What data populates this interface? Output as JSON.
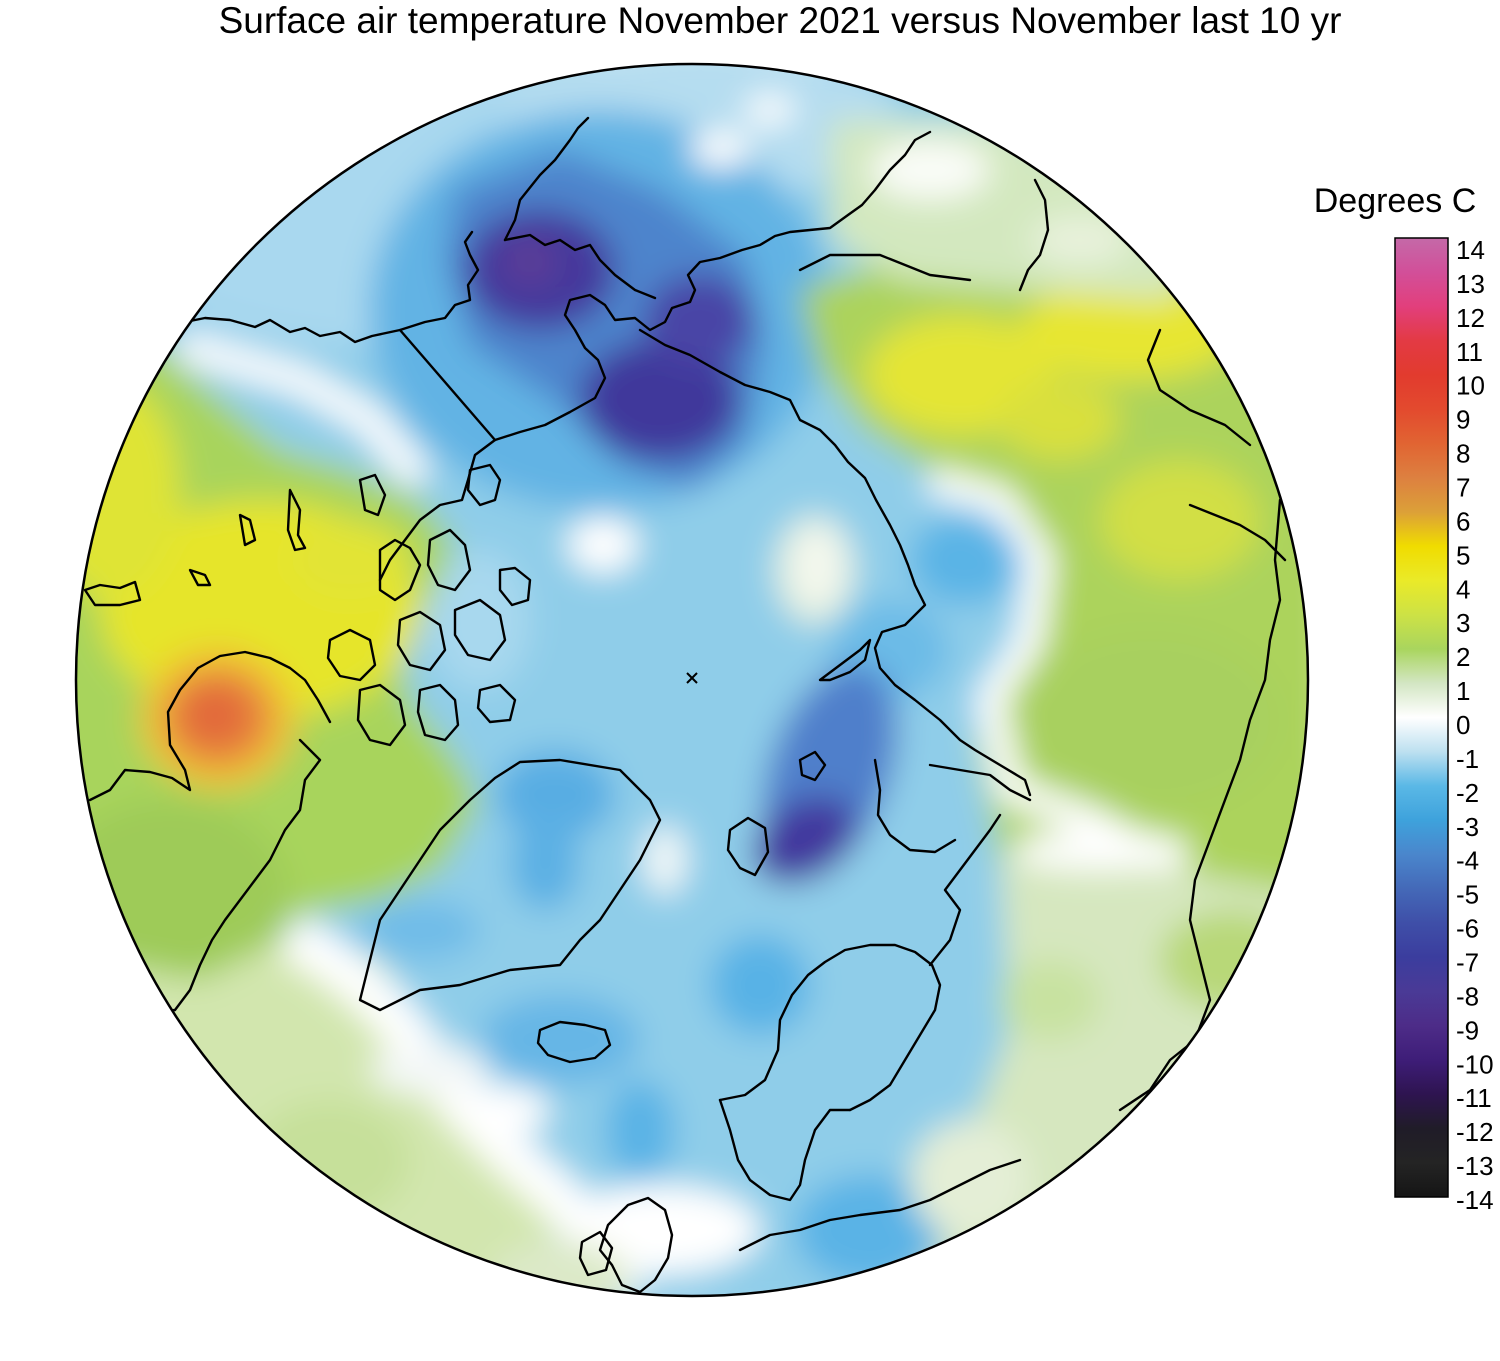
{
  "title": "Surface air temperature November 2021 versus November last 10 yr",
  "colorbar": {
    "label": "Degrees C",
    "ticks": [
      "14",
      "13",
      "12",
      "11",
      "10",
      "9",
      "8",
      "7",
      "6",
      "5",
      "4",
      "3",
      "2",
      "1",
      "0",
      "-1",
      "-2",
      "-3",
      "-4",
      "-5",
      "-6",
      "-7",
      "-8",
      "-9",
      "-10",
      "-11",
      "-12",
      "-13",
      "-14"
    ],
    "colors": [
      {
        "value": 14,
        "color": "#c469a8"
      },
      {
        "value": 13,
        "color": "#d24f99"
      },
      {
        "value": 12,
        "color": "#e23f7c"
      },
      {
        "value": 11,
        "color": "#e33a44"
      },
      {
        "value": 10,
        "color": "#e23b2e"
      },
      {
        "value": 9,
        "color": "#e34a2e"
      },
      {
        "value": 8,
        "color": "#e16432"
      },
      {
        "value": 7,
        "color": "#dd8040"
      },
      {
        "value": 6,
        "color": "#dca038"
      },
      {
        "value": 5,
        "color": "#f0dc00"
      },
      {
        "value": 4,
        "color": "#eaea28"
      },
      {
        "value": 3,
        "color": "#cde245"
      },
      {
        "value": 2,
        "color": "#a9d55e"
      },
      {
        "value": 1,
        "color": "#d3e6c3"
      },
      {
        "value": 0,
        "color": "#ffffff"
      },
      {
        "value": -1,
        "color": "#bde0f0"
      },
      {
        "value": -2,
        "color": "#5ab8e6"
      },
      {
        "value": -3,
        "color": "#3ea2dc"
      },
      {
        "value": -4,
        "color": "#4a86cc"
      },
      {
        "value": -5,
        "color": "#4469b8"
      },
      {
        "value": -6,
        "color": "#3f4fa8"
      },
      {
        "value": -7,
        "color": "#3b3d9e"
      },
      {
        "value": -8,
        "color": "#4a3a96"
      },
      {
        "value": -9,
        "color": "#4d2c88"
      },
      {
        "value": -10,
        "color": "#3e1d78"
      },
      {
        "value": -11,
        "color": "#2e1450"
      },
      {
        "value": -12,
        "color": "#201c28"
      },
      {
        "value": -13,
        "color": "#242424"
      },
      {
        "value": -14,
        "color": "#151515"
      }
    ]
  }
}
